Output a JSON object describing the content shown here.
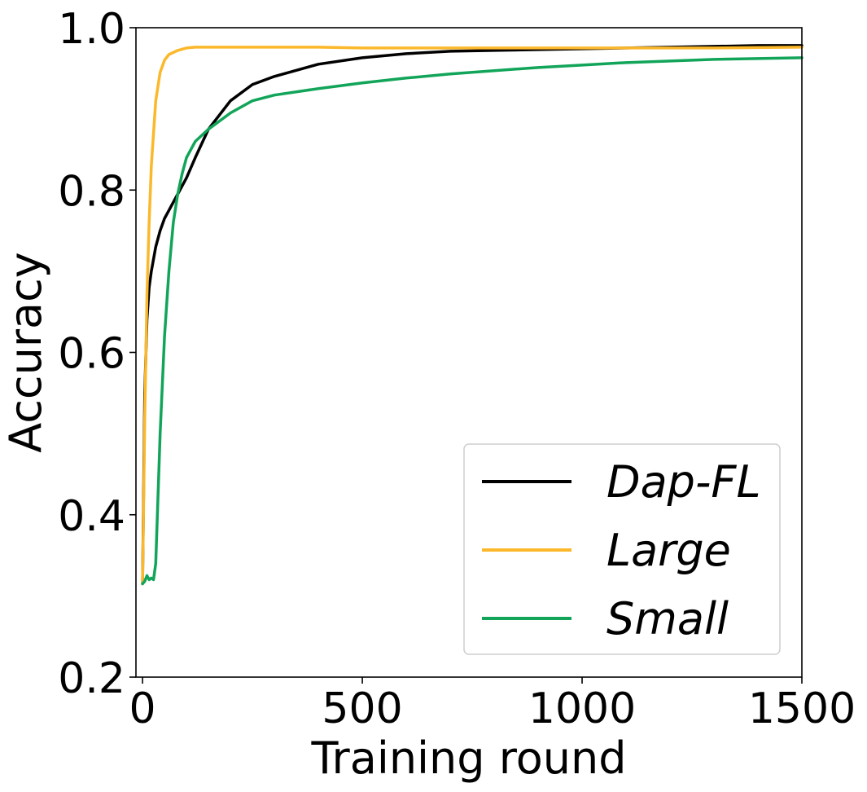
{
  "chart_data": {
    "type": "line",
    "title": "",
    "xlabel": "Training round",
    "ylabel": "Accuracy",
    "xlim": [
      -15,
      1500
    ],
    "ylim": [
      0.2,
      1.0
    ],
    "xticks": [
      0,
      500,
      1000,
      1500
    ],
    "xtick_labels": [
      "0",
      "500",
      "1000",
      "1500"
    ],
    "yticks": [
      0.2,
      0.4,
      0.6,
      0.8,
      1.0
    ],
    "ytick_labels": [
      "0.2",
      "0.4",
      "0.6",
      "0.8",
      "1.0"
    ],
    "grid": false,
    "legend_position": "bottom-right",
    "series": [
      {
        "name": "Dap-FL",
        "color": "#000000",
        "x": [
          0,
          5,
          10,
          15,
          20,
          30,
          40,
          50,
          60,
          80,
          100,
          120,
          150,
          200,
          250,
          300,
          400,
          500,
          600,
          700,
          800,
          900,
          1000,
          1100,
          1200,
          1300,
          1400,
          1500
        ],
        "y": [
          0.315,
          0.55,
          0.64,
          0.68,
          0.7,
          0.73,
          0.75,
          0.765,
          0.775,
          0.795,
          0.815,
          0.84,
          0.875,
          0.91,
          0.93,
          0.94,
          0.955,
          0.963,
          0.968,
          0.971,
          0.972,
          0.973,
          0.974,
          0.975,
          0.976,
          0.977,
          0.978,
          0.978
        ]
      },
      {
        "name": "Large",
        "color": "#FBB82B",
        "x": [
          0,
          5,
          10,
          15,
          20,
          30,
          40,
          50,
          60,
          80,
          100,
          120,
          150,
          200,
          300,
          400,
          500,
          700,
          900,
          1100,
          1300,
          1500
        ],
        "y": [
          0.315,
          0.52,
          0.67,
          0.76,
          0.83,
          0.91,
          0.945,
          0.96,
          0.967,
          0.972,
          0.975,
          0.976,
          0.976,
          0.976,
          0.976,
          0.976,
          0.975,
          0.975,
          0.975,
          0.975,
          0.975,
          0.976
        ]
      },
      {
        "name": "Small",
        "color": "#12A55A",
        "x": [
          0,
          5,
          10,
          15,
          20,
          25,
          30,
          40,
          50,
          60,
          70,
          80,
          90,
          100,
          120,
          150,
          200,
          250,
          300,
          400,
          500,
          600,
          700,
          800,
          900,
          1000,
          1100,
          1200,
          1300,
          1400,
          1500
        ],
        "y": [
          0.315,
          0.318,
          0.325,
          0.32,
          0.322,
          0.32,
          0.34,
          0.5,
          0.62,
          0.7,
          0.76,
          0.795,
          0.82,
          0.84,
          0.86,
          0.875,
          0.895,
          0.91,
          0.917,
          0.925,
          0.932,
          0.938,
          0.943,
          0.947,
          0.951,
          0.954,
          0.957,
          0.959,
          0.961,
          0.962,
          0.963
        ]
      }
    ]
  }
}
